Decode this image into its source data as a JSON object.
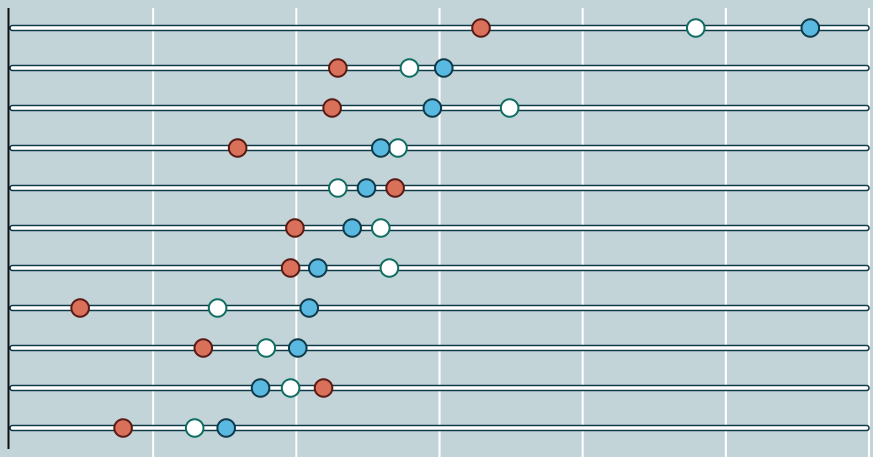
{
  "chart_data": {
    "type": "dot-plot",
    "xlim": [
      0,
      6
    ],
    "grid": true,
    "legend": "none",
    "colors": {
      "background": "#c3d4d8",
      "grid": "#ffffff",
      "track_fill": "#ffffff",
      "track_stroke": "#0f3a4a",
      "axis": "#111111"
    },
    "series": [
      {
        "key": "a",
        "fill": "#d9705a",
        "stroke": "#5a1a14"
      },
      {
        "key": "b",
        "fill": "#ffffff",
        "stroke": "#0f6e62"
      },
      {
        "key": "c",
        "fill": "#5ab9e0",
        "stroke": "#0f3a4a"
      }
    ],
    "rows": [
      {
        "a": 3.29,
        "b": 4.79,
        "c": 5.59
      },
      {
        "a": 2.29,
        "b": 2.79,
        "c": 3.03
      },
      {
        "a": 2.25,
        "b": 3.49,
        "c": 2.95
      },
      {
        "a": 1.59,
        "b": 2.71,
        "c": 2.59
      },
      {
        "a": 2.69,
        "b": 2.29,
        "c": 2.49
      },
      {
        "a": 1.99,
        "b": 2.59,
        "c": 2.39
      },
      {
        "a": 1.96,
        "b": 2.65,
        "c": 2.15
      },
      {
        "a": 0.49,
        "b": 1.45,
        "c": 2.09
      },
      {
        "a": 1.35,
        "b": 1.79,
        "c": 2.01
      },
      {
        "a": 2.19,
        "b": 1.96,
        "c": 1.75
      },
      {
        "a": 0.79,
        "b": 1.29,
        "c": 1.51
      }
    ]
  }
}
